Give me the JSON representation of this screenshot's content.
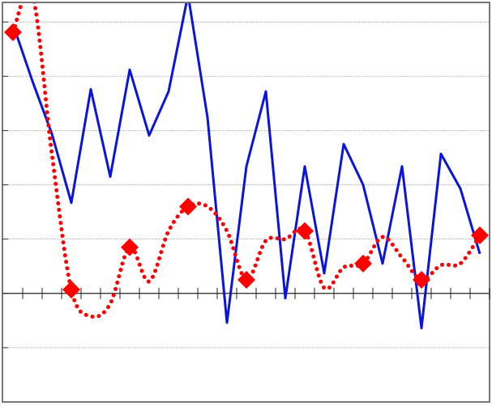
{
  "chart_data": {
    "type": "line",
    "categories": [
      null,
      null,
      null,
      null,
      null,
      null,
      null,
      null,
      null,
      null,
      null,
      null,
      null,
      null,
      null,
      null,
      null,
      null,
      null,
      null,
      null,
      null,
      null,
      null,
      null
    ],
    "series": [
      {
        "color": "#0a14dc",
        "style": "solid",
        "smooth": false,
        "values": [
          4.96,
          3.91,
          2.94,
          1.67,
          3.76,
          2.15,
          4.12,
          2.91,
          3.72,
          5.5,
          3.24,
          -0.54,
          2.34,
          3.72,
          -0.09,
          2.34,
          0.37,
          2.75,
          2.0,
          0.55,
          2.34,
          -0.64,
          2.57,
          1.93,
          0.73
        ]
      },
      {
        "color": "#ff0000",
        "style": "dotted",
        "smooth": true,
        "marker": "diamond",
        "marker_every": 3,
        "values": [
          4.81,
          5.5,
          2.57,
          0.07,
          -0.42,
          -0.19,
          0.85,
          0.22,
          1.15,
          1.6,
          1.6,
          1.15,
          0.25,
          0.97,
          1.0,
          1.15,
          0.1,
          0.48,
          0.55,
          1.04,
          0.66,
          0.25,
          0.52,
          0.55,
          1.07
        ]
      }
    ],
    "ylim": [
      -2,
      5.36
    ],
    "yticks": [
      -1,
      0,
      1,
      2,
      3,
      4,
      5
    ],
    "grid": true
  }
}
